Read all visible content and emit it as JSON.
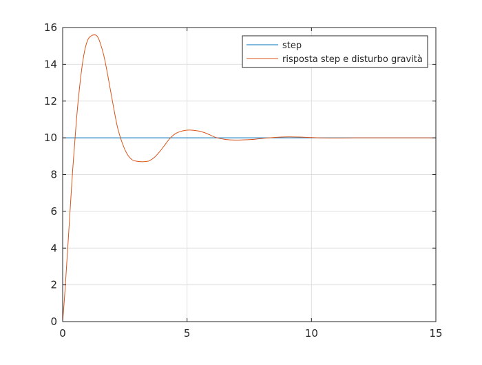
{
  "chart_data": {
    "type": "line",
    "title": "",
    "xlabel": "",
    "ylabel": "",
    "xlim": [
      0,
      15
    ],
    "ylim": [
      0,
      16
    ],
    "xticks": [
      0,
      5,
      10,
      15
    ],
    "yticks": [
      0,
      2,
      4,
      6,
      8,
      10,
      12,
      14,
      16
    ],
    "xtick_labels": [
      "0",
      "5",
      "10",
      "15"
    ],
    "ytick_labels": [
      "0",
      "2",
      "4",
      "6",
      "8",
      "10",
      "12",
      "14",
      "16"
    ],
    "grid": true,
    "legend_position": "top-right",
    "series": [
      {
        "name": "step",
        "color": "#0072bd",
        "x": [
          0,
          15
        ],
        "y": [
          10,
          10
        ]
      },
      {
        "name": "risposta step e disturbo gravità",
        "color": "#d95319",
        "x": [
          0,
          0.1,
          0.25,
          0.4,
          0.55,
          0.7,
          0.85,
          1.0,
          1.15,
          1.3,
          1.4,
          1.5,
          1.65,
          1.8,
          2.0,
          2.2,
          2.4,
          2.6,
          2.8,
          3.0,
          3.2,
          3.4,
          3.5,
          3.7,
          3.9,
          4.1,
          4.3,
          4.5,
          4.7,
          4.9,
          5.1,
          5.3,
          5.5,
          5.7,
          5.9,
          6.1,
          6.3,
          6.5,
          6.7,
          6.9,
          7.1,
          7.3,
          7.6,
          7.9,
          8.2,
          8.5,
          8.8,
          9.1,
          9.5,
          9.9,
          10.3,
          10.7,
          11.2,
          11.7,
          12.2,
          13.0,
          14.0,
          15.0
        ],
        "y": [
          0,
          1.8,
          5.0,
          8.2,
          10.9,
          13.0,
          14.5,
          15.3,
          15.55,
          15.6,
          15.5,
          15.2,
          14.5,
          13.5,
          12.0,
          10.6,
          9.7,
          9.1,
          8.8,
          8.72,
          8.7,
          8.72,
          8.76,
          8.95,
          9.25,
          9.6,
          9.95,
          10.2,
          10.33,
          10.4,
          10.42,
          10.4,
          10.36,
          10.28,
          10.17,
          10.05,
          9.97,
          9.92,
          9.89,
          9.88,
          9.88,
          9.89,
          9.91,
          9.95,
          9.99,
          10.02,
          10.04,
          10.05,
          10.04,
          10.02,
          10.0,
          9.99,
          9.99,
          10.0,
          10.0,
          10.0,
          10.0,
          10.0
        ]
      }
    ]
  }
}
